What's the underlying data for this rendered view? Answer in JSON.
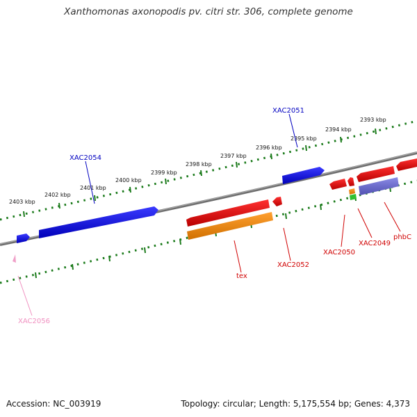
{
  "title": "Xanthomonas axonopodis pv. citri str. 306, complete genome",
  "footer": {
    "accession": "Accession: NC_003919",
    "summary": "Topology: circular; Length: 5,175,554 bp; Genes: 4,373"
  },
  "scale_labels": [
    "2393 kbp",
    "2394 kbp",
    "2395 kbp",
    "2396 kbp",
    "2397 kbp",
    "2398 kbp",
    "2399 kbp",
    "2400 kbp",
    "2401 kbp",
    "2402 kbp",
    "2403 kbp"
  ],
  "gene_labels": {
    "xac2051": "XAC2051",
    "xac2054": "XAC2054",
    "tex": "tex",
    "xac2052": "XAC2052",
    "xac2050": "XAC2050",
    "xac2049": "XAC2049",
    "phbc": "phbC",
    "xac2056": "XAC2056"
  },
  "colors": {
    "forward_gene": "#1010e0",
    "reverse_gene": "#e81010",
    "cds_orange": "#f08a10",
    "cds_purple": "#7070d0",
    "rna_green": "#30c030",
    "pink_gene": "#f0a0c8",
    "label_blue": "#0000c0",
    "label_red": "#d00000",
    "label_pink": "#f090c0",
    "tick_green": "#1a7a1a",
    "backbone": "#808080"
  }
}
